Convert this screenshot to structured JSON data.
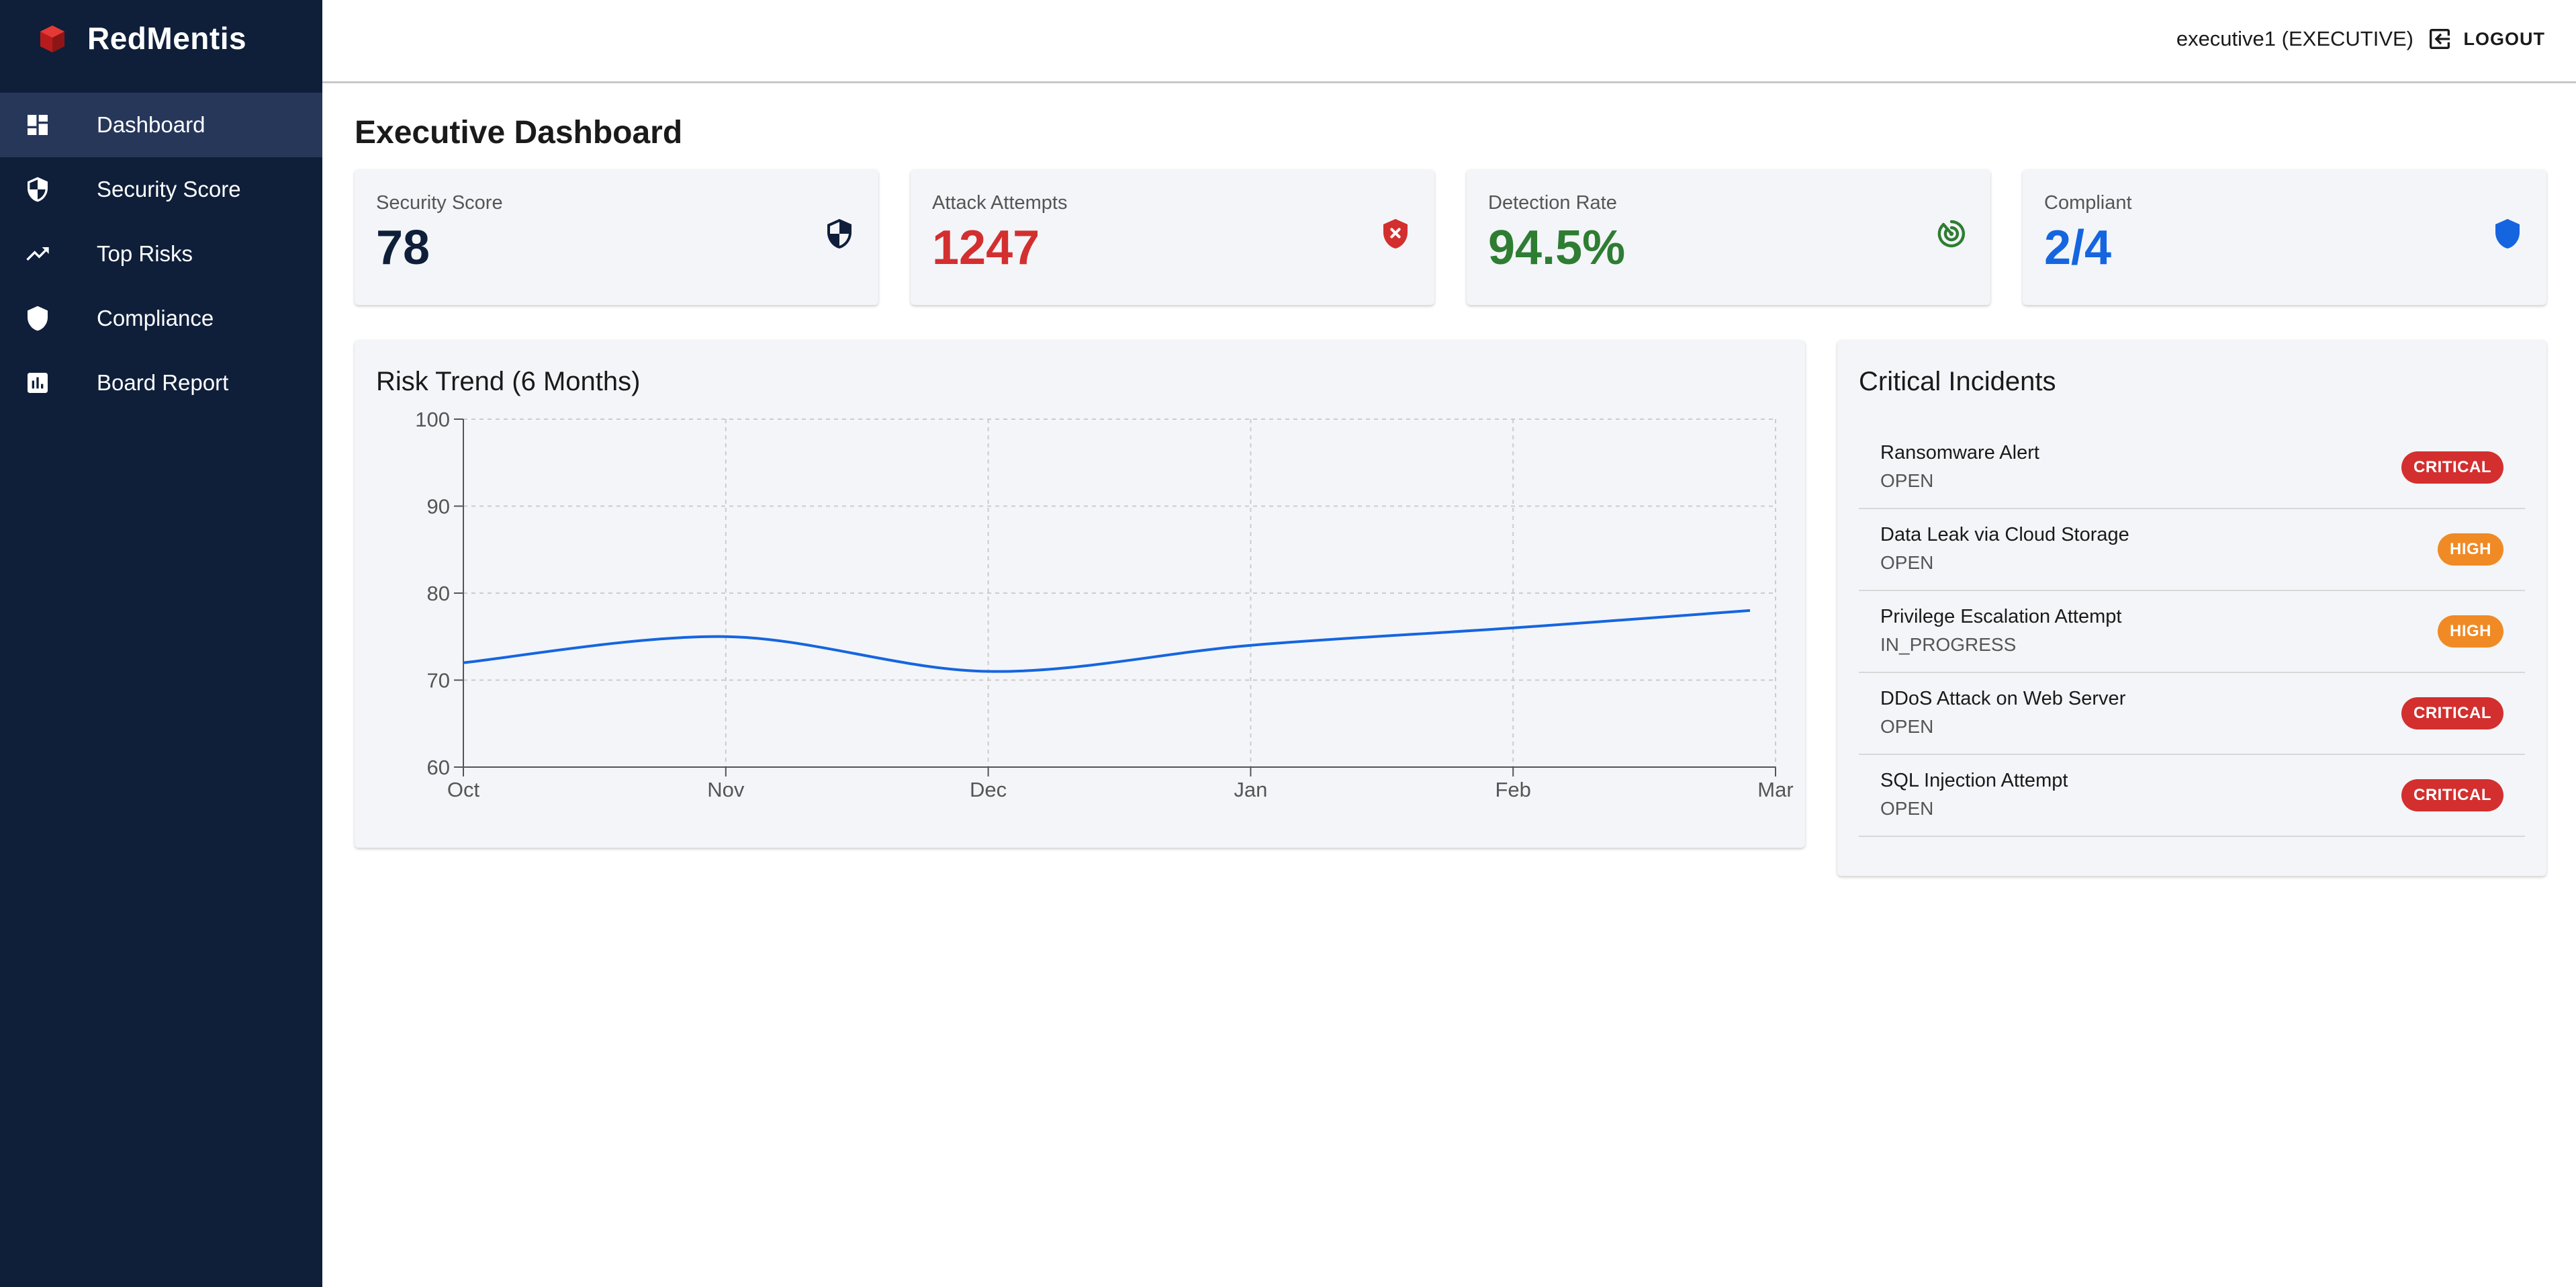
{
  "brand": {
    "name": "RedMentis",
    "logo_icon": "cube-icon",
    "logo_color": "#d32f2f"
  },
  "sidebar": {
    "items": [
      {
        "label": "Dashboard",
        "icon": "dashboard-icon",
        "active": true
      },
      {
        "label": "Security Score",
        "icon": "shield-half-icon",
        "active": false
      },
      {
        "label": "Top Risks",
        "icon": "trending-up-icon",
        "active": false
      },
      {
        "label": "Compliance",
        "icon": "shield-icon",
        "active": false
      },
      {
        "label": "Board Report",
        "icon": "bar-chart-icon",
        "active": false
      }
    ]
  },
  "header": {
    "user": "executive1 (EXECUTIVE)",
    "logout_label": "LOGOUT",
    "logout_icon": "logout-icon"
  },
  "page": {
    "title": "Executive Dashboard"
  },
  "stats": [
    {
      "label": "Security Score",
      "value": "78",
      "color": "#0f1f3a",
      "icon": "shield-half-icon"
    },
    {
      "label": "Attack Attempts",
      "value": "1247",
      "color": "#d32f2f",
      "icon": "shield-error-icon"
    },
    {
      "label": "Detection Rate",
      "value": "94.5%",
      "color": "#2e7d32",
      "icon": "radar-icon"
    },
    {
      "label": "Compliant",
      "value": "2/4",
      "color": "#1565e0",
      "icon": "shield-icon"
    }
  ],
  "risk_trend": {
    "title": "Risk Trend (6 Months)"
  },
  "chart_data": {
    "type": "line",
    "title": "Risk Trend (6 Months)",
    "categories": [
      "Oct",
      "Nov",
      "Dec",
      "Jan",
      "Feb",
      "Mar"
    ],
    "values": [
      72,
      75,
      71,
      74,
      76,
      78
    ],
    "ylim": [
      60,
      100
    ],
    "yticks": [
      60,
      70,
      80,
      90,
      100
    ],
    "grid": true,
    "line_color": "#1565e0"
  },
  "incidents": {
    "title": "Critical Incidents",
    "items": [
      {
        "title": "Ransomware Alert",
        "status": "OPEN",
        "severity": "CRITICAL"
      },
      {
        "title": "Data Leak via Cloud Storage",
        "status": "OPEN",
        "severity": "HIGH"
      },
      {
        "title": "Privilege Escalation Attempt",
        "status": "IN_PROGRESS",
        "severity": "HIGH"
      },
      {
        "title": "DDoS Attack on Web Server",
        "status": "OPEN",
        "severity": "CRITICAL"
      },
      {
        "title": "SQL Injection Attempt",
        "status": "OPEN",
        "severity": "CRITICAL"
      }
    ]
  },
  "severity_colors": {
    "CRITICAL": "#d32f2f",
    "HIGH": "#f08a24"
  }
}
